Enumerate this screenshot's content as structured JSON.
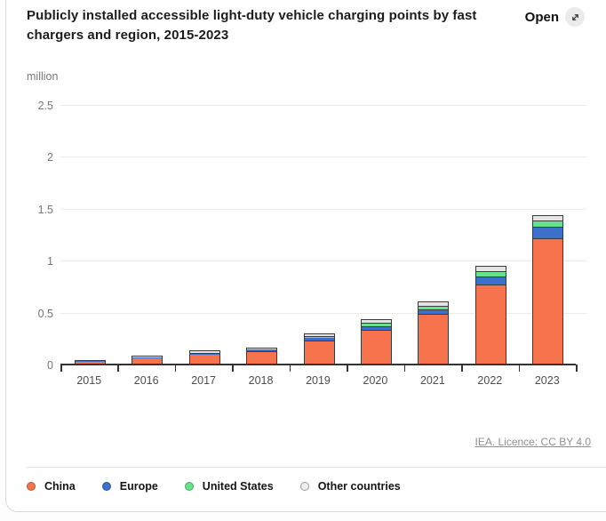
{
  "header": {
    "title": "Publicly installed accessible light-duty vehicle charging points by fast chargers and region, 2015-2023",
    "open_label": "Open",
    "open_icon": "expand-arrows-icon"
  },
  "chart": {
    "unit": "million"
  },
  "footer": {
    "link_text": "IEA. Licence: CC BY 4.0"
  },
  "legend": [
    {
      "label": "China",
      "color": "#f7734e"
    },
    {
      "label": "Europe",
      "color": "#3d70cb"
    },
    {
      "label": "United States",
      "color": "#66e28a"
    },
    {
      "label": "Other countries",
      "color": "#ededed",
      "border": "#9a9a9a"
    }
  ],
  "chart_data": {
    "type": "bar",
    "stacked": true,
    "title": "Publicly installed accessible light-duty vehicle charging points by fast chargers and region, 2015-2023",
    "unit": "million",
    "categories": [
      "2015",
      "2016",
      "2017",
      "2018",
      "2019",
      "2020",
      "2021",
      "2022",
      "2023"
    ],
    "series": [
      {
        "name": "China",
        "color": "#f7734e",
        "values": [
          0.02,
          0.055,
          0.085,
          0.115,
          0.215,
          0.32,
          0.475,
          0.75,
          1.2
        ]
      },
      {
        "name": "Europe",
        "color": "#3d70cb",
        "values": [
          0.003,
          0.006,
          0.009,
          0.012,
          0.028,
          0.023,
          0.032,
          0.074,
          0.1
        ]
      },
      {
        "name": "United States",
        "color": "#66e28a",
        "values": [
          0.002,
          0.003,
          0.004,
          0.005,
          0.008,
          0.028,
          0.02,
          0.04,
          0.054
        ]
      },
      {
        "name": "Other countries",
        "color": "#e4e4e4",
        "values": [
          0.004,
          0.008,
          0.012,
          0.008,
          0.016,
          0.023,
          0.042,
          0.04,
          0.04
        ]
      }
    ],
    "ylim": [
      0,
      2.5
    ],
    "yticks": [
      0,
      0.5,
      1,
      1.5,
      2,
      2.5
    ],
    "xlabel": "",
    "ylabel": "million",
    "grid": true,
    "legend_position": "bottom",
    "bar_border_color": "#3a3a3a"
  }
}
